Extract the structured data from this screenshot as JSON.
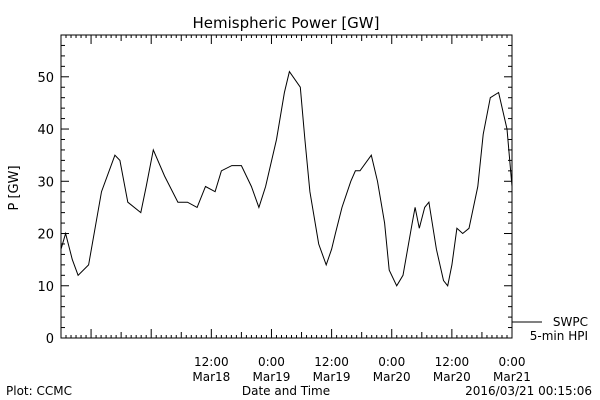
{
  "chart_data": {
    "type": "line",
    "title": "Hemispheric Power [GW]",
    "xlabel": "Date and Time",
    "ylabel": "P [GW]",
    "xlim": [
      "2016-03-17 06:00",
      "2016-03-21 00:00"
    ],
    "ylim": [
      0,
      58
    ],
    "y_ticks": [
      0,
      10,
      20,
      30,
      40,
      50
    ],
    "x_ticks": [
      {
        "x": "2016-03-18 12:00",
        "time": "12:00",
        "date": "Mar18"
      },
      {
        "x": "2016-03-19 00:00",
        "time": "0:00",
        "date": "Mar19"
      },
      {
        "x": "2016-03-19 12:00",
        "time": "12:00",
        "date": "Mar19"
      },
      {
        "x": "2016-03-20 00:00",
        "time": "0:00",
        "date": "Mar20"
      },
      {
        "x": "2016-03-20 12:00",
        "time": "12:00",
        "date": "Mar20"
      },
      {
        "x": "2016-03-21 00:00",
        "time": "0:00",
        "date": "Mar21"
      }
    ],
    "grid": false,
    "legend_position": "bottom-right",
    "legend": [
      "SWPC",
      "5-min HPI"
    ],
    "series": [
      {
        "name": "5-min HPI",
        "color": "#000000",
        "x": [
          "2016-03-17 06:00",
          "2016-03-17 06:55",
          "2016-03-17 08:15",
          "2016-03-17 09:25",
          "2016-03-17 11:30",
          "2016-03-17 14:05",
          "2016-03-17 16:45",
          "2016-03-17 17:45",
          "2016-03-17 19:20",
          "2016-03-17 21:55",
          "2016-03-17 23:00",
          "2016-03-18 00:25",
          "2016-03-18 02:40",
          "2016-03-18 05:20",
          "2016-03-18 07:15",
          "2016-03-18 09:10",
          "2016-03-18 10:50",
          "2016-03-18 12:45",
          "2016-03-18 14:00",
          "2016-03-18 16:05",
          "2016-03-18 18:00",
          "2016-03-18 20:00",
          "2016-03-18 21:30",
          "2016-03-18 22:50",
          "2016-03-19 01:00",
          "2016-03-19 02:35",
          "2016-03-19 03:35",
          "2016-03-19 05:45",
          "2016-03-19 06:40",
          "2016-03-19 07:40",
          "2016-03-19 09:25",
          "2016-03-19 10:55",
          "2016-03-19 12:00",
          "2016-03-19 12:45",
          "2016-03-19 14:05",
          "2016-03-19 15:50",
          "2016-03-19 16:45",
          "2016-03-19 17:40",
          "2016-03-19 19:55",
          "2016-03-19 21:10",
          "2016-03-19 22:35",
          "2016-03-19 23:30",
          "2016-03-20 01:00",
          "2016-03-20 02:15",
          "2016-03-20 04:05",
          "2016-03-20 04:40",
          "2016-03-20 05:30",
          "2016-03-20 06:35",
          "2016-03-20 07:25",
          "2016-03-20 08:55",
          "2016-03-20 10:20",
          "2016-03-20 11:10",
          "2016-03-20 12:00",
          "2016-03-20 13:00",
          "2016-03-20 14:10",
          "2016-03-20 15:25",
          "2016-03-20 17:10",
          "2016-03-20 18:15",
          "2016-03-20 19:40",
          "2016-03-20 21:20",
          "2016-03-20 23:00",
          "2016-03-21 00:00"
        ],
        "values": [
          17,
          20,
          15,
          12,
          14,
          28,
          35,
          34,
          26,
          24,
          29,
          36,
          31,
          26,
          26,
          25,
          29,
          28,
          32,
          33,
          33,
          29,
          25,
          29,
          38,
          47,
          51,
          48,
          38,
          28,
          18,
          14,
          17,
          20,
          25,
          30,
          32,
          32,
          35,
          30,
          22,
          13,
          10,
          12,
          22,
          25,
          21,
          25,
          26,
          17,
          11,
          10,
          14,
          21,
          20,
          21,
          29,
          39,
          46,
          47,
          40,
          29
        ]
      }
    ]
  },
  "footer": {
    "plot_credit": "Plot: CCMC",
    "timestamp": "2016/03/21 00:15:06"
  }
}
